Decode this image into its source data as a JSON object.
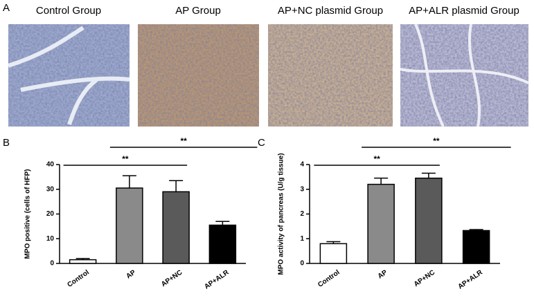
{
  "panel_a": {
    "label": "A",
    "titles": [
      "Control Group",
      "AP Group",
      "AP+NC plasmid Group",
      "AP+ALR plasmid Group"
    ]
  },
  "chart_data": [
    {
      "type": "bar",
      "panel_label": "B",
      "ylabel": "MPO positive (cells of HFP)",
      "categories": [
        "Control",
        "AP",
        "AP+NC",
        "AP+ALR"
      ],
      "values": [
        1.5,
        30.5,
        29,
        15.5
      ],
      "errors": [
        0.5,
        5,
        4.5,
        1.5
      ],
      "colors": [
        "#ffffff",
        "#8a8a8a",
        "#5a5a5a",
        "#000000"
      ],
      "ylim": [
        0,
        40
      ],
      "yticks": [
        0,
        10,
        20,
        30,
        40
      ],
      "annotations": [
        {
          "text": "**",
          "between": [
            0,
            2
          ]
        },
        {
          "text": "**",
          "between": [
            1,
            3
          ]
        }
      ]
    },
    {
      "type": "bar",
      "panel_label": "C",
      "ylabel": "MPO activity of pancreas (U/g tissue)",
      "categories": [
        "Control",
        "AP",
        "AP+NC",
        "AP+ALR"
      ],
      "values": [
        0.8,
        3.2,
        3.45,
        1.33
      ],
      "errors": [
        0.08,
        0.25,
        0.2,
        0.04
      ],
      "colors": [
        "#ffffff",
        "#8a8a8a",
        "#5a5a5a",
        "#000000"
      ],
      "ylim": [
        0,
        4
      ],
      "yticks": [
        0,
        1,
        2,
        3,
        4
      ],
      "annotations": [
        {
          "text": "**",
          "between": [
            0,
            2
          ]
        },
        {
          "text": "**",
          "between": [
            1,
            3
          ]
        }
      ]
    }
  ]
}
